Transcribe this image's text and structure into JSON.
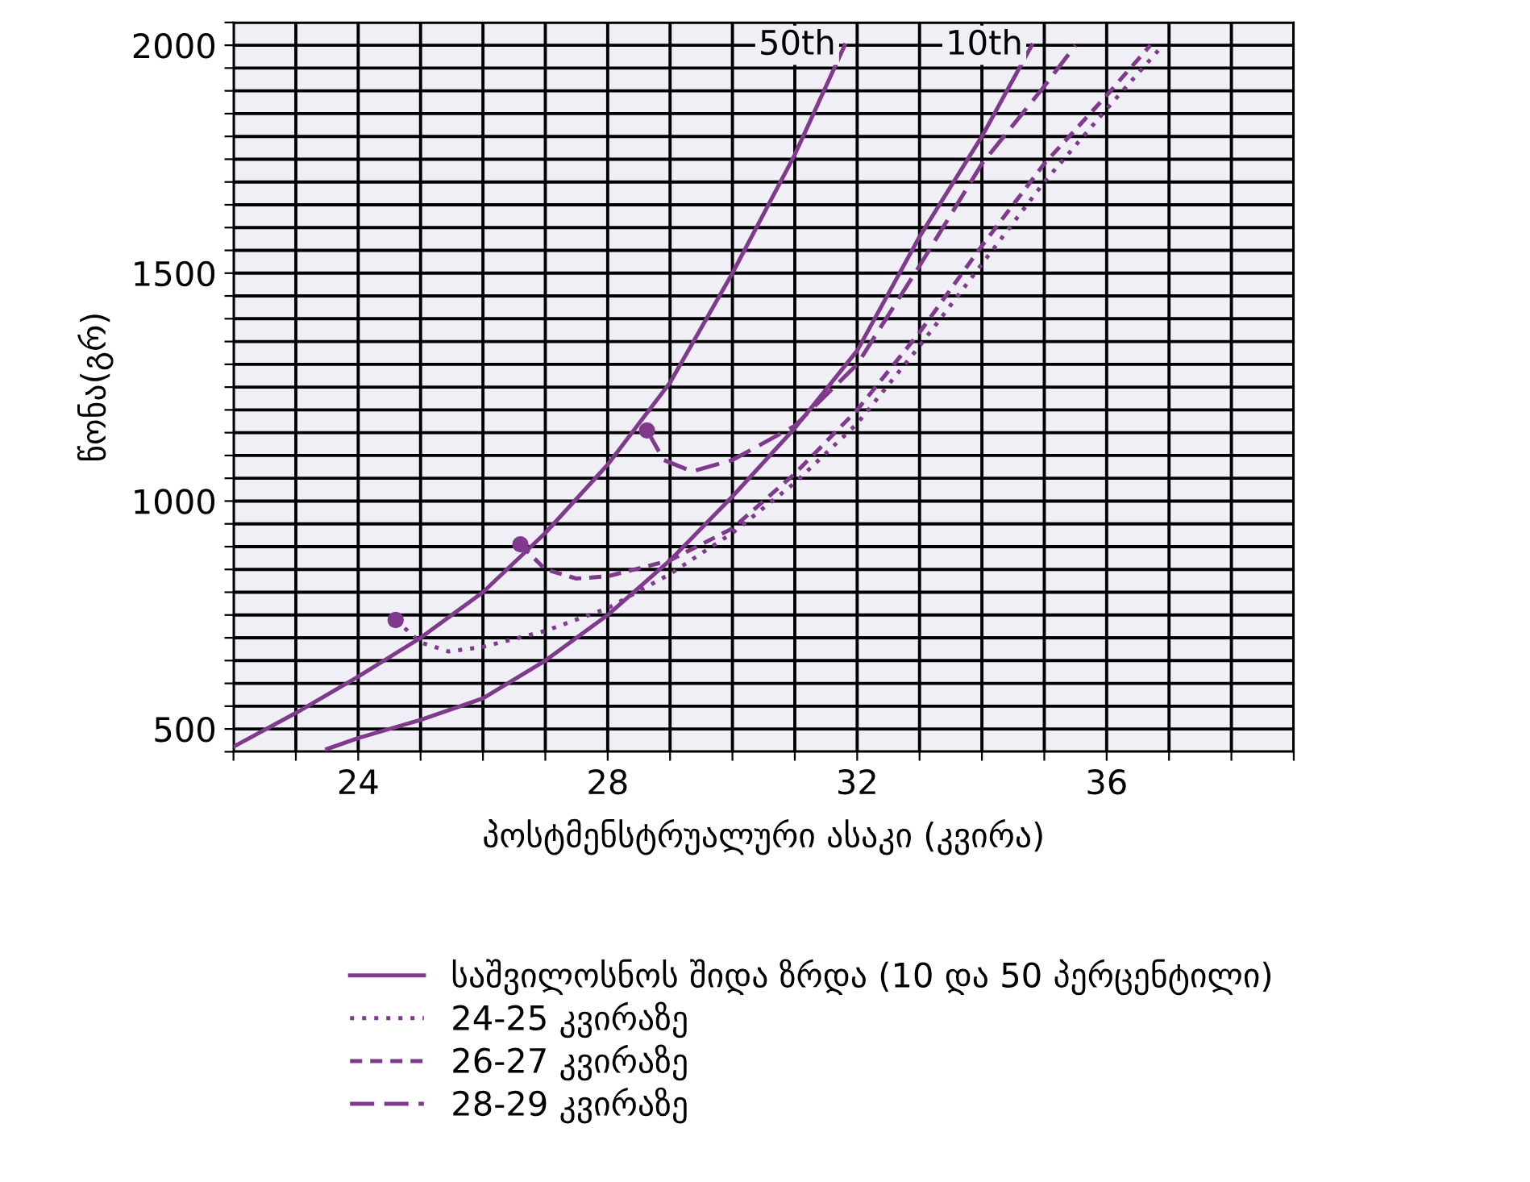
{
  "chart_data": {
    "type": "line",
    "xlabel": "პოსტმენსტრუალური ასაკი (კვირა)",
    "ylabel": "წონა(გრ)",
    "xlim": [
      22,
      39
    ],
    "ylim": [
      450,
      2050
    ],
    "xticks": [
      {
        "value": 22,
        "label": null
      },
      {
        "value": 23,
        "label": null
      },
      24,
      {
        "value": 25,
        "label": null
      },
      {
        "value": 26,
        "label": null
      },
      {
        "value": 27,
        "label": null
      },
      28,
      {
        "value": 29,
        "label": null
      },
      {
        "value": 30,
        "label": null
      },
      {
        "value": 31,
        "label": null
      },
      32,
      {
        "value": 33,
        "label": null
      },
      {
        "value": 34,
        "label": null
      },
      {
        "value": 35,
        "label": null
      },
      36,
      {
        "value": 37,
        "label": null
      },
      {
        "value": 38,
        "label": null
      },
      {
        "value": 39,
        "label": null
      }
    ],
    "yticks": [
      {
        "value": 450,
        "label": null
      },
      500,
      {
        "value": 550,
        "label": null
      },
      {
        "value": 600,
        "label": null
      },
      {
        "value": 650,
        "label": null
      },
      {
        "value": 700,
        "label": null
      },
      {
        "value": 750,
        "label": null
      },
      {
        "value": 800,
        "label": null
      },
      {
        "value": 850,
        "label": null
      },
      {
        "value": 900,
        "label": null
      },
      {
        "value": 950,
        "label": null
      },
      1000,
      {
        "value": 1050,
        "label": null
      },
      {
        "value": 1100,
        "label": null
      },
      {
        "value": 1150,
        "label": null
      },
      {
        "value": 1200,
        "label": null
      },
      {
        "value": 1250,
        "label": null
      },
      {
        "value": 1300,
        "label": null
      },
      {
        "value": 1350,
        "label": null
      },
      {
        "value": 1400,
        "label": null
      },
      {
        "value": 1450,
        "label": null
      },
      1500,
      {
        "value": 1550,
        "label": null
      },
      {
        "value": 1600,
        "label": null
      },
      {
        "value": 1650,
        "label": null
      },
      {
        "value": 1700,
        "label": null
      },
      {
        "value": 1750,
        "label": null
      },
      {
        "value": 1800,
        "label": null
      },
      {
        "value": 1850,
        "label": null
      },
      {
        "value": 1900,
        "label": null
      },
      {
        "value": 1950,
        "label": null
      },
      2000,
      {
        "value": 2050,
        "label": null
      }
    ],
    "grid": true,
    "legend": "bottom",
    "series": [
      {
        "name": "საშვილოსნოს შიდა ზრდა (10 და 50 პერცენტილი)",
        "color": "#7f3a8e",
        "line_style": "solid",
        "x": [
          23.5,
          24,
          25,
          26,
          27,
          28,
          29,
          30,
          31,
          32,
          33,
          34,
          34.8
        ],
        "values": [
          456,
          480,
          520,
          567,
          650,
          750,
          870,
          1010,
          1160,
          1330,
          1580,
          1800,
          2000
        ]
      },
      {
        "color": "#7f3a8e",
        "line_style": "solid",
        "x": [
          22,
          23,
          24,
          25,
          26,
          27,
          28,
          29,
          30,
          31,
          31.8
        ],
        "values": [
          461,
          535,
          615,
          700,
          800,
          930,
          1080,
          1260,
          1500,
          1760,
          2000
        ]
      },
      {
        "name": "24-25 კვირაზე",
        "color": "#7f3a8e",
        "line_style": "dotted",
        "x": [
          24.6,
          25,
          25.45,
          26,
          27,
          28,
          29,
          30,
          31,
          32,
          33,
          34,
          35,
          36,
          36.9
        ],
        "values": [
          739,
          690,
          670,
          680,
          715,
          765,
          840,
          930,
          1040,
          1170,
          1340,
          1520,
          1700,
          1860,
          2000
        ]
      },
      {
        "name": "26-27 კვირაზე",
        "color": "#7f3a8e",
        "line_style": "dashed",
        "x": [
          26.6,
          27,
          27.5,
          28,
          29,
          30,
          31,
          32,
          33,
          34,
          35,
          36,
          36.7
        ],
        "values": [
          905,
          850,
          830,
          835,
          870,
          940,
          1060,
          1200,
          1370,
          1560,
          1740,
          1890,
          2000
        ]
      },
      {
        "name": "28-29 კვირაზე",
        "color": "#7f3a8e",
        "line_style": "long dashed",
        "x": [
          28.63,
          28.9,
          29.35,
          30,
          31,
          32,
          33,
          34,
          35,
          35.5
        ],
        "values": [
          1155,
          1090,
          1065,
          1090,
          1165,
          1300,
          1516,
          1740,
          1910,
          2000
        ]
      },
      {
        "type": "scatter",
        "color": "#7f3a8e",
        "marker": "circle",
        "x": [
          24.6,
          26.6,
          28.63
        ],
        "values": [
          739,
          905,
          1155
        ]
      }
    ],
    "annotations": [
      {
        "text": "50th",
        "x": 31.8,
        "y": 2000
      },
      {
        "text": "10th",
        "x": 34.8,
        "y": 2000
      }
    ]
  }
}
